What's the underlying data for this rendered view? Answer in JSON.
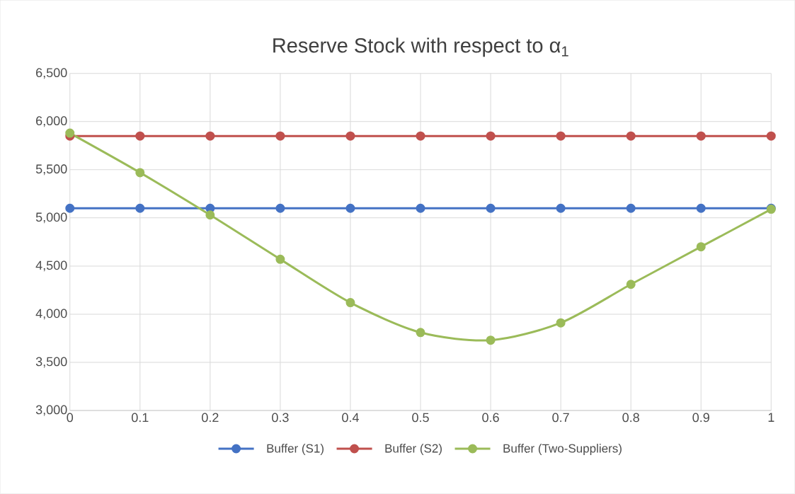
{
  "chart_data": {
    "type": "line",
    "title": "Reserve Stock with respect to α$_{1}$",
    "x": [
      0,
      0.1,
      0.2,
      0.3,
      0.4,
      0.5,
      0.6,
      0.7,
      0.8,
      0.9,
      1
    ],
    "series": [
      {
        "name": "Buffer (S1)",
        "color": "#4472c4",
        "values": [
          5100,
          5100,
          5100,
          5100,
          5100,
          5100,
          5100,
          5100,
          5100,
          5100,
          5100
        ]
      },
      {
        "name": "Buffer (S2)",
        "color": "#c0504d",
        "values": [
          5850,
          5850,
          5850,
          5850,
          5850,
          5850,
          5850,
          5850,
          5850,
          5850,
          5850
        ]
      },
      {
        "name": "Buffer (Two-Suppliers)",
        "color": "#9bbb59",
        "values": [
          5880,
          5470,
          5030,
          4570,
          4120,
          3810,
          3730,
          3910,
          4310,
          4700,
          5090
        ]
      }
    ],
    "xlim": [
      0,
      1
    ],
    "xticks": [
      0,
      0.1,
      0.2,
      0.3,
      0.4,
      0.5,
      0.6,
      0.7,
      0.8,
      0.9,
      1
    ],
    "ylim": [
      3000,
      6500
    ],
    "yticks": [
      {
        "value": 3000,
        "label": "3,000"
      },
      {
        "value": 3500,
        "label": "3,500"
      },
      {
        "value": 4000,
        "label": "4,000"
      },
      {
        "value": 4500,
        "label": "4,500"
      },
      {
        "value": 5000,
        "label": "5,000"
      },
      {
        "value": 5500,
        "label": "5,500"
      },
      {
        "value": 6000,
        "label": "6,000"
      },
      {
        "value": 6500,
        "label": "6,500"
      }
    ],
    "grid": true,
    "legend": "bottom",
    "marker": "circle",
    "line_style": "solid"
  }
}
